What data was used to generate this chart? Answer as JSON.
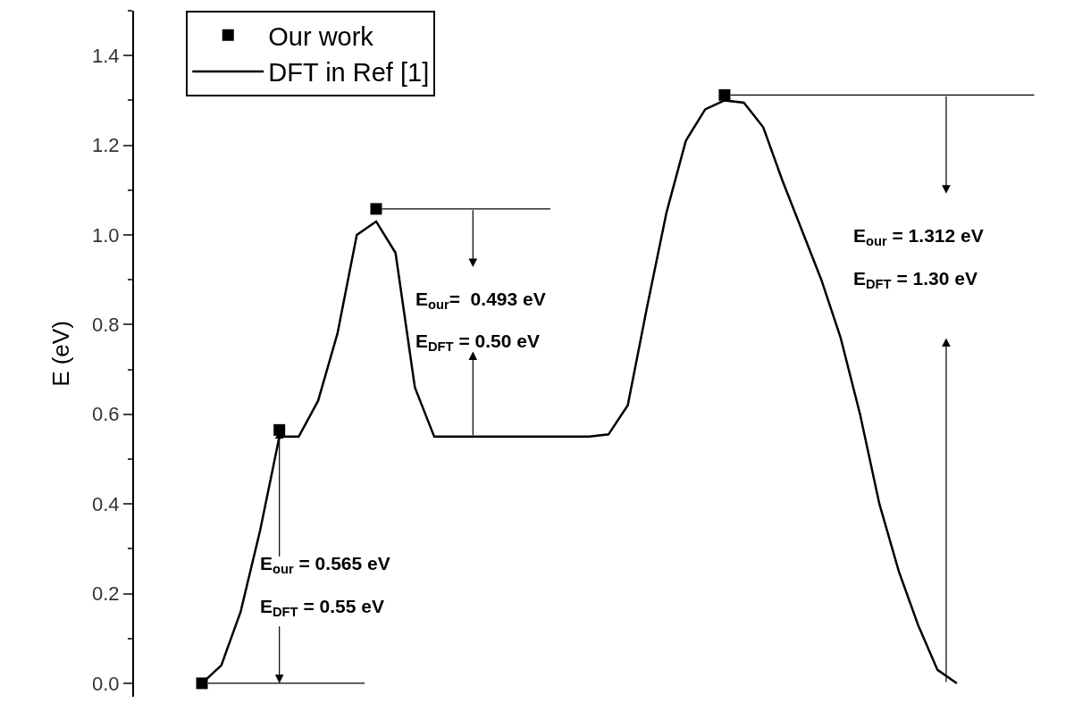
{
  "chart_data": {
    "type": "line",
    "ylabel": "E (eV)",
    "categories": [
      null,
      null,
      null,
      null,
      null,
      null,
      null,
      null,
      null,
      null,
      null,
      null,
      null,
      null,
      null,
      null,
      null,
      null,
      null,
      null,
      null,
      null,
      null,
      null,
      null,
      null,
      null,
      null,
      null,
      null,
      null,
      null,
      null,
      null,
      null,
      null,
      null,
      null,
      null,
      null
    ],
    "series": [
      {
        "name": "Our work",
        "type": "scatter",
        "marker": "square",
        "color": "#000000",
        "values": [
          0,
          null,
          null,
          null,
          0.565,
          null,
          null,
          null,
          null,
          1.058,
          null,
          null,
          null,
          null,
          null,
          null,
          null,
          null,
          null,
          null,
          null,
          null,
          null,
          null,
          null,
          null,
          null,
          1.312,
          null,
          null,
          null,
          null,
          null,
          null,
          null,
          null,
          null,
          null,
          null,
          null
        ]
      },
      {
        "name": "DFT in Ref [1]",
        "marker": "none",
        "line_style": "solid",
        "color": "#000000",
        "values": [
          0,
          0.04,
          0.16,
          0.34,
          0.55,
          0.55,
          0.63,
          0.78,
          1.0,
          1.03,
          0.96,
          0.66,
          0.55,
          0.55,
          0.55,
          0.55,
          0.55,
          0.55,
          0.55,
          0.55,
          0.55,
          0.555,
          0.62,
          0.84,
          1.05,
          1.21,
          1.28,
          1.3,
          1.295,
          1.24,
          1.12,
          1.01,
          0.9,
          0.77,
          0.6,
          0.4,
          0.25,
          0.13,
          0.03,
          0
        ]
      }
    ],
    "ylim": [
      -0.03,
      1.5
    ],
    "yticks": [
      {
        "value": 0,
        "label": "0.0"
      },
      {
        "value": 0.2,
        "label": "0.2"
      },
      {
        "value": 0.4,
        "label": "0.4"
      },
      {
        "value": 0.6,
        "label": "0.6"
      },
      {
        "value": 0.8,
        "label": "0.8"
      },
      {
        "value": 1.0,
        "label": "1.0"
      },
      {
        "value": 1.2,
        "label": "1.2"
      },
      {
        "value": 1.4,
        "label": "1.4"
      }
    ],
    "tick_labels": "y",
    "grid": false,
    "legend": "top left",
    "ref_lines": [
      {
        "axis": "y",
        "value": 0
      },
      {
        "axis": "y",
        "value": 1.058
      },
      {
        "axis": "y",
        "value": 1.312
      }
    ],
    "annotations": [
      "E$_{our}$ = 0.565 eV",
      "E$_{DFT}$ = 0.55 eV",
      "E$_{our}$=  0.493 eV",
      "E$_{DFT}$ = 0.50 eV",
      "E$_{our}$ = 1.312 eV",
      "E$_{DFT}$ = 1.30 eV"
    ]
  }
}
